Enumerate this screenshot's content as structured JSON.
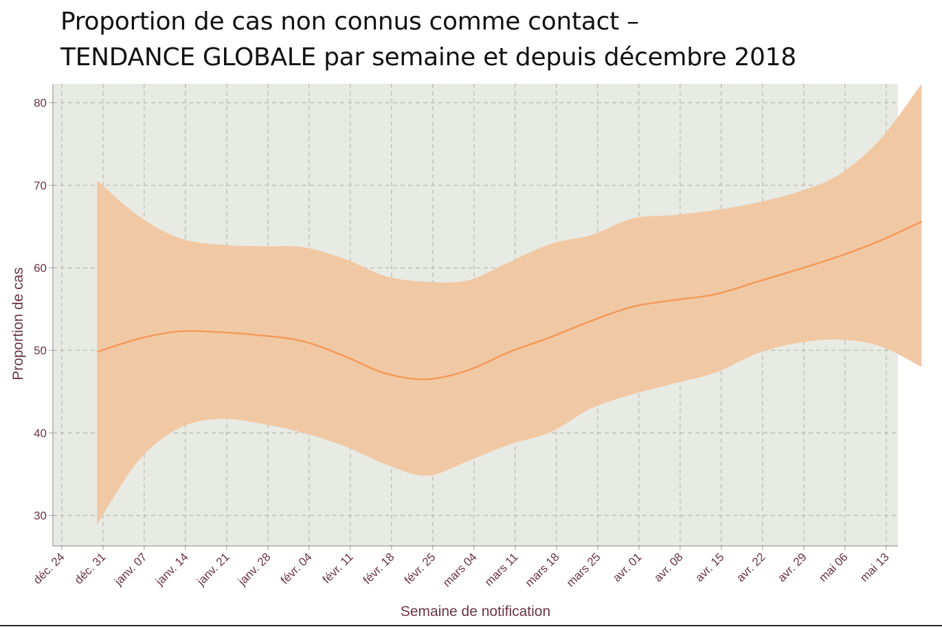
{
  "title_line1": "Proportion de cas non connus comme contact –",
  "title_line2": "TENDANCE GLOBALE par semaine et depuis décembre 2018",
  "chart_data": {
    "type": "area",
    "xlabel": "Semaine de notification",
    "ylabel": "Proportion de cas",
    "x_ticks": [
      "déc. 24",
      "déc. 31",
      "janv. 07",
      "janv. 14",
      "janv. 21",
      "janv. 28",
      "févr. 04",
      "févr. 11",
      "févr. 18",
      "févr. 25",
      "mars 04",
      "mars 11",
      "mars 18",
      "mars 25",
      "avr. 01",
      "avr. 08",
      "avr. 15",
      "avr. 22",
      "avr. 29",
      "mai 06",
      "mai 13"
    ],
    "y_ticks": [
      30,
      40,
      50,
      60,
      70,
      80
    ],
    "xlim_days": [
      -1.5,
      142
    ],
    "ylim": [
      26.3,
      82.3
    ],
    "grid": true,
    "series": [
      {
        "kind": "line",
        "x_days": [
          6,
          13,
          20,
          27,
          34,
          41,
          48,
          55,
          62,
          69,
          76,
          83,
          90,
          97,
          104,
          111,
          118,
          125,
          132,
          139,
          146
        ],
        "values": [
          49.8,
          51.4,
          52.3,
          52.2,
          51.8,
          51.1,
          49.3,
          47.2,
          46.5,
          47.6,
          49.8,
          51.6,
          53.6,
          55.3,
          56.1,
          56.8,
          58.3,
          59.8,
          61.4,
          63.3,
          65.6
        ]
      },
      {
        "kind": "ci_upper",
        "x_days": [
          6,
          13,
          20,
          27,
          34,
          41,
          48,
          55,
          62,
          69,
          76,
          83,
          90,
          97,
          104,
          111,
          118,
          125,
          132,
          139,
          146
        ],
        "values": [
          70.6,
          66.3,
          63.6,
          62.8,
          62.6,
          62.5,
          61.1,
          59.0,
          58.3,
          58.5,
          60.7,
          62.9,
          64.0,
          66.0,
          66.4,
          67.0,
          67.9,
          69.2,
          71.3,
          75.6,
          82.3
        ]
      },
      {
        "kind": "ci_lower",
        "x_days": [
          6,
          13,
          20,
          27,
          34,
          41,
          48,
          55,
          62,
          69,
          76,
          83,
          90,
          97,
          104,
          111,
          118,
          125,
          132,
          139,
          146
        ],
        "values": [
          28.9,
          36.6,
          40.6,
          41.7,
          41.1,
          40.0,
          38.4,
          36.2,
          34.8,
          36.6,
          38.6,
          40.1,
          43.0,
          44.7,
          46.0,
          47.3,
          49.6,
          50.9,
          51.3,
          50.5,
          48.0
        ]
      }
    ],
    "colors": {
      "background": "#e8eae4",
      "band": "#f1c8a4",
      "line": "#f3995a",
      "grid": "#b8b6ab",
      "text": "#6b3344"
    }
  }
}
